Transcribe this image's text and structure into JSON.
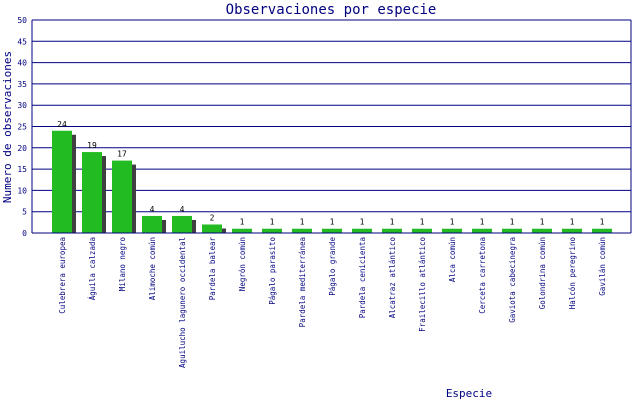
{
  "chart_data": {
    "type": "bar",
    "title": "Observaciones por especie",
    "xlabel": "Especie",
    "ylabel": "Numero de observaciones",
    "ylim": [
      0,
      50
    ],
    "yticks": [
      0,
      5,
      10,
      15,
      20,
      25,
      30,
      35,
      40,
      45,
      50
    ],
    "grid": true,
    "legend": "none",
    "colors": {
      "bar": "#22bb22",
      "shadow": "#404040",
      "grid": "#000080",
      "text": "#000080",
      "label": "#000000"
    },
    "categories": [
      "Culebrera europea",
      "Águila calzada",
      "Milano negro",
      "Alimoche común",
      "Aguilucho lagunero occidental",
      "Pardela balear",
      "Negrón común",
      "Págalo parasito",
      "Pardela mediterránea",
      "Págalo grande",
      "Pardela cenicienta",
      "Alcatraz atlántico",
      "Frailecillo atlántico",
      "Alca común",
      "Cerceta carretona",
      "Gaviota cabecinegra",
      "Golondrina común",
      "Halcón peregrino",
      "Gavilán común"
    ],
    "values": [
      24,
      19,
      17,
      4,
      4,
      2,
      1,
      1,
      1,
      1,
      1,
      1,
      1,
      1,
      1,
      1,
      1,
      1,
      1
    ]
  }
}
